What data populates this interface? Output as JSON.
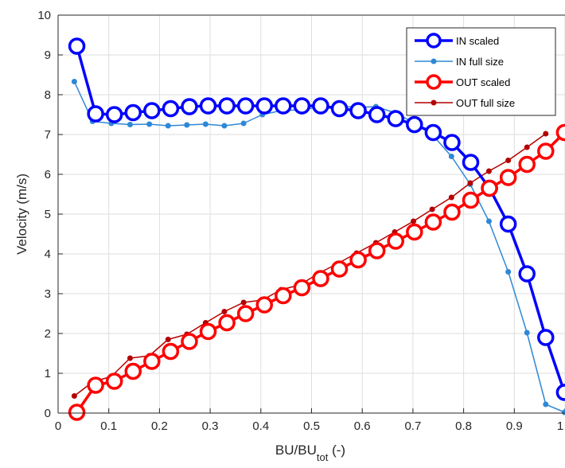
{
  "chart_data": {
    "type": "line",
    "xlabel": "BU/BU",
    "xlabel_sub": "tot",
    "xlabel_unit": " (-)",
    "ylabel": "Velocity (m/s)",
    "xlim": [
      0,
      1
    ],
    "ylim": [
      0,
      10
    ],
    "xticks": [
      0,
      0.1,
      0.2,
      0.3,
      0.4,
      0.5,
      0.6,
      0.7,
      0.8,
      0.9,
      1
    ],
    "xtick_labels": [
      "0",
      "0.1",
      "0.2",
      "0.3",
      "0.4",
      "0.5",
      "0.6",
      "0.7",
      "0.8",
      "0.9",
      "1"
    ],
    "yticks": [
      0,
      1,
      2,
      3,
      4,
      5,
      6,
      7,
      8,
      9,
      10
    ],
    "ytick_labels": [
      "0",
      "1",
      "2",
      "3",
      "4",
      "5",
      "6",
      "7",
      "8",
      "9",
      "10"
    ],
    "grid": true,
    "legend_position": "top-right",
    "series": [
      {
        "name": "IN scaled",
        "color": "#0000ff",
        "style": "circle-thick",
        "x": [
          0.037,
          0.074,
          0.111,
          0.148,
          0.185,
          0.222,
          0.259,
          0.296,
          0.333,
          0.37,
          0.407,
          0.444,
          0.481,
          0.518,
          0.555,
          0.592,
          0.629,
          0.666,
          0.703,
          0.74,
          0.777,
          0.814,
          0.851,
          0.888,
          0.925,
          0.962,
          0.999
        ],
        "y": [
          9.22,
          7.52,
          7.5,
          7.55,
          7.6,
          7.65,
          7.7,
          7.72,
          7.72,
          7.72,
          7.72,
          7.72,
          7.72,
          7.72,
          7.65,
          7.6,
          7.5,
          7.4,
          7.25,
          7.05,
          6.8,
          6.3,
          5.65,
          4.75,
          3.5,
          1.9,
          0.52
        ]
      },
      {
        "name": "IN full size",
        "color": "#2e88d6",
        "style": "dot-thin",
        "x": [
          0.032,
          0.068,
          0.105,
          0.142,
          0.18,
          0.217,
          0.254,
          0.291,
          0.328,
          0.366,
          0.403,
          0.44,
          0.477,
          0.515,
          0.552,
          0.589,
          0.627,
          0.664,
          0.701,
          0.738,
          0.776,
          0.813,
          0.85,
          0.888,
          0.925,
          0.962,
          0.999
        ],
        "y": [
          8.33,
          7.33,
          7.28,
          7.25,
          7.26,
          7.22,
          7.24,
          7.26,
          7.22,
          7.28,
          7.5,
          7.6,
          7.62,
          7.68,
          7.72,
          7.68,
          7.7,
          7.55,
          7.3,
          7.0,
          6.45,
          5.75,
          4.82,
          3.55,
          2.02,
          0.22,
          0.02
        ]
      },
      {
        "name": "OUT scaled",
        "color": "#ff0000",
        "style": "circle-thick",
        "x": [
          0.037,
          0.074,
          0.111,
          0.148,
          0.185,
          0.222,
          0.259,
          0.296,
          0.333,
          0.37,
          0.407,
          0.444,
          0.481,
          0.518,
          0.555,
          0.592,
          0.629,
          0.666,
          0.703,
          0.74,
          0.777,
          0.814,
          0.851,
          0.888,
          0.925,
          0.962,
          0.999
        ],
        "y": [
          0.02,
          0.7,
          0.8,
          1.05,
          1.3,
          1.55,
          1.8,
          2.05,
          2.27,
          2.5,
          2.72,
          2.95,
          3.15,
          3.38,
          3.62,
          3.85,
          4.08,
          4.32,
          4.55,
          4.8,
          5.05,
          5.35,
          5.65,
          5.92,
          6.25,
          6.58,
          7.05
        ]
      },
      {
        "name": "OUT full size",
        "color": "#b40000",
        "style": "dot-thin",
        "x": [
          0.032,
          0.068,
          0.105,
          0.142,
          0.18,
          0.217,
          0.254,
          0.291,
          0.328,
          0.366,
          0.403,
          0.44,
          0.477,
          0.515,
          0.552,
          0.589,
          0.627,
          0.664,
          0.701,
          0.738,
          0.776,
          0.813,
          0.85,
          0.888,
          0.925,
          0.962
        ],
        "y": [
          0.43,
          0.78,
          0.92,
          1.38,
          1.44,
          1.85,
          1.98,
          2.27,
          2.55,
          2.78,
          2.84,
          3.1,
          3.22,
          3.52,
          3.76,
          4.02,
          4.28,
          4.55,
          4.82,
          5.12,
          5.42,
          5.78,
          6.08,
          6.35,
          6.68,
          7.02
        ]
      }
    ]
  }
}
